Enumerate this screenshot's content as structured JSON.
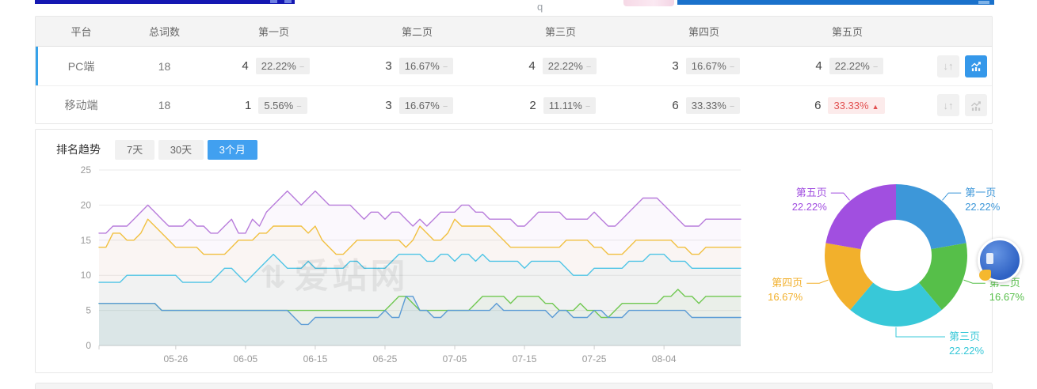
{
  "table": {
    "headers": [
      "平台",
      "总词数",
      "第一页",
      "第二页",
      "第三页",
      "第四页",
      "第五页"
    ],
    "rows": [
      {
        "platform": "PC端",
        "total": "18",
        "chart_active": true,
        "cells": [
          {
            "count": "4",
            "percent": "22.22%",
            "trend": "flat"
          },
          {
            "count": "3",
            "percent": "16.67%",
            "trend": "flat"
          },
          {
            "count": "4",
            "percent": "22.22%",
            "trend": "flat"
          },
          {
            "count": "3",
            "percent": "16.67%",
            "trend": "flat"
          },
          {
            "count": "4",
            "percent": "22.22%",
            "trend": "flat"
          }
        ]
      },
      {
        "platform": "移动端",
        "total": "18",
        "chart_active": false,
        "cells": [
          {
            "count": "1",
            "percent": "5.56%",
            "trend": "flat"
          },
          {
            "count": "3",
            "percent": "16.67%",
            "trend": "flat"
          },
          {
            "count": "2",
            "percent": "11.11%",
            "trend": "flat"
          },
          {
            "count": "6",
            "percent": "33.33%",
            "trend": "flat"
          },
          {
            "count": "6",
            "percent": "33.33%",
            "trend": "up"
          }
        ]
      }
    ]
  },
  "trend_section": {
    "title": "排名趋势",
    "tabs": [
      {
        "label": "7天",
        "active": false
      },
      {
        "label": "30天",
        "active": false
      },
      {
        "label": "3个月",
        "active": true
      }
    ]
  },
  "watermark": {
    "text": "爱站网"
  },
  "glyphs": {
    "minus": "−",
    "up": "▲",
    "sort": "↓↑",
    "watermark_logo": "⇅"
  },
  "colors": {
    "row_accent": "#36a2ea",
    "active_tab": "#41a0f0",
    "active_icon": "#3598ea",
    "chip_red_text": "#e25050",
    "chip_red_bg": "#fcebeb",
    "grid": "#ebebeb",
    "axis": "#cfcfcf",
    "tick_text": "#999999"
  },
  "chart_data": [
    {
      "type": "line",
      "title": "",
      "xlabel": "",
      "ylabel": "",
      "ylim": [
        0,
        25
      ],
      "y_ticks": [
        0,
        5,
        10,
        15,
        20,
        25
      ],
      "grid": "horizontal",
      "legend_position": "none",
      "x_tick_labels": [
        "05-26",
        "06-05",
        "06-15",
        "06-25",
        "07-05",
        "07-15",
        "07-25",
        "08-04"
      ],
      "x_tick_day_indices": [
        11,
        21,
        31,
        41,
        51,
        61,
        71,
        81
      ],
      "series": [
        {
          "name": "series-purple",
          "color": "#b87cdb",
          "values": [
            16,
            16,
            17,
            17,
            17,
            18,
            19,
            20,
            19,
            18,
            17,
            17,
            17,
            18,
            17,
            17,
            16,
            16,
            17,
            18,
            16,
            16,
            18,
            17,
            19,
            20,
            21,
            22,
            21,
            20,
            21,
            22,
            21,
            20,
            20,
            20,
            20,
            19,
            18,
            19,
            19,
            18,
            19,
            19,
            18,
            17,
            18,
            17,
            18,
            19,
            19,
            19,
            20,
            20,
            19,
            19,
            18,
            18,
            18,
            18,
            17,
            17,
            18,
            19,
            19,
            19,
            19,
            18,
            18,
            18,
            18,
            19,
            18,
            17,
            17,
            18,
            19,
            20,
            21,
            21,
            21,
            20,
            19,
            18,
            17,
            17,
            17,
            18,
            18,
            18,
            18,
            18,
            18
          ]
        },
        {
          "name": "series-yellow",
          "color": "#f1c040",
          "values": [
            14,
            14,
            16,
            16,
            15,
            15,
            16,
            18,
            17,
            16,
            15,
            14,
            14,
            14,
            14,
            13,
            13,
            13,
            13,
            14,
            15,
            15,
            15,
            16,
            16,
            17,
            17,
            17,
            17,
            17,
            16,
            17,
            15,
            14,
            13,
            13,
            14,
            15,
            15,
            15,
            15,
            15,
            15,
            15,
            14,
            15,
            17,
            16,
            15,
            15,
            16,
            18,
            17,
            17,
            17,
            17,
            17,
            16,
            15,
            14,
            14,
            14,
            14,
            14,
            14,
            14,
            14,
            15,
            15,
            15,
            15,
            14,
            14,
            13,
            13,
            13,
            14,
            15,
            15,
            15,
            15,
            15,
            15,
            14,
            14,
            13,
            13,
            14,
            14,
            14,
            14,
            14,
            14
          ]
        },
        {
          "name": "series-cyan",
          "color": "#50c5e6",
          "values": [
            9,
            9,
            9,
            9,
            10,
            10,
            10,
            10,
            10,
            10,
            10,
            10,
            9,
            9,
            9,
            9,
            9,
            10,
            11,
            11,
            10,
            9,
            10,
            11,
            12,
            13,
            12,
            11,
            11,
            11,
            12,
            11,
            11,
            11,
            11,
            11,
            12,
            12,
            11,
            11,
            11,
            11,
            12,
            13,
            13,
            13,
            13,
            12,
            12,
            13,
            13,
            12,
            13,
            13,
            12,
            13,
            12,
            12,
            12,
            12,
            12,
            11,
            12,
            12,
            12,
            12,
            12,
            11,
            10,
            10,
            10,
            11,
            11,
            11,
            11,
            11,
            12,
            12,
            12,
            13,
            13,
            13,
            12,
            12,
            12,
            11,
            11,
            11,
            11,
            11,
            11,
            11,
            11
          ]
        },
        {
          "name": "series-green",
          "color": "#70c851",
          "values": [
            6,
            6,
            6,
            6,
            6,
            6,
            6,
            6,
            6,
            5,
            5,
            5,
            5,
            5,
            5,
            5,
            5,
            5,
            5,
            5,
            5,
            5,
            5,
            5,
            5,
            5,
            5,
            5,
            5,
            5,
            5,
            5,
            5,
            5,
            5,
            5,
            5,
            5,
            5,
            5,
            5,
            5,
            6,
            7,
            7,
            6,
            5,
            5,
            5,
            5,
            5,
            5,
            5,
            5,
            6,
            7,
            7,
            7,
            7,
            6,
            7,
            7,
            7,
            7,
            6,
            6,
            5,
            5,
            5,
            6,
            5,
            5,
            4,
            4,
            5,
            6,
            6,
            6,
            6,
            6,
            6,
            7,
            7,
            8,
            7,
            7,
            6,
            7,
            7,
            7,
            7,
            7,
            7
          ]
        },
        {
          "name": "series-blue",
          "color": "#5b9bd5",
          "values": [
            6,
            6,
            6,
            6,
            6,
            6,
            6,
            6,
            6,
            5,
            5,
            5,
            5,
            5,
            5,
            5,
            5,
            5,
            5,
            5,
            5,
            5,
            5,
            5,
            5,
            5,
            5,
            5,
            4,
            3,
            3,
            4,
            4,
            4,
            4,
            4,
            4,
            4,
            4,
            4,
            4,
            5,
            4,
            4,
            7,
            7,
            5,
            5,
            4,
            4,
            5,
            5,
            5,
            5,
            5,
            5,
            5,
            6,
            5,
            5,
            5,
            5,
            5,
            5,
            5,
            4,
            5,
            5,
            4,
            4,
            4,
            5,
            5,
            4,
            4,
            4,
            5,
            5,
            5,
            5,
            5,
            5,
            5,
            5,
            5,
            4,
            4,
            4,
            4,
            4,
            4,
            4,
            4
          ]
        }
      ]
    },
    {
      "type": "pie",
      "donut": true,
      "title": "",
      "legend_position": "none",
      "slices": [
        {
          "label": "第一页",
          "percent": "22.22%",
          "value": 22.22,
          "color": "#3d97d9"
        },
        {
          "label": "第二页",
          "percent": "16.67%",
          "value": 16.67,
          "color": "#56bf49"
        },
        {
          "label": "第三页",
          "percent": "22.22%",
          "value": 22.22,
          "color": "#38c8d8"
        },
        {
          "label": "第四页",
          "percent": "16.67%",
          "value": 16.67,
          "color": "#f2b02c"
        },
        {
          "label": "第五页",
          "percent": "22.22%",
          "value": 22.22,
          "color": "#a14fe0"
        }
      ]
    }
  ]
}
